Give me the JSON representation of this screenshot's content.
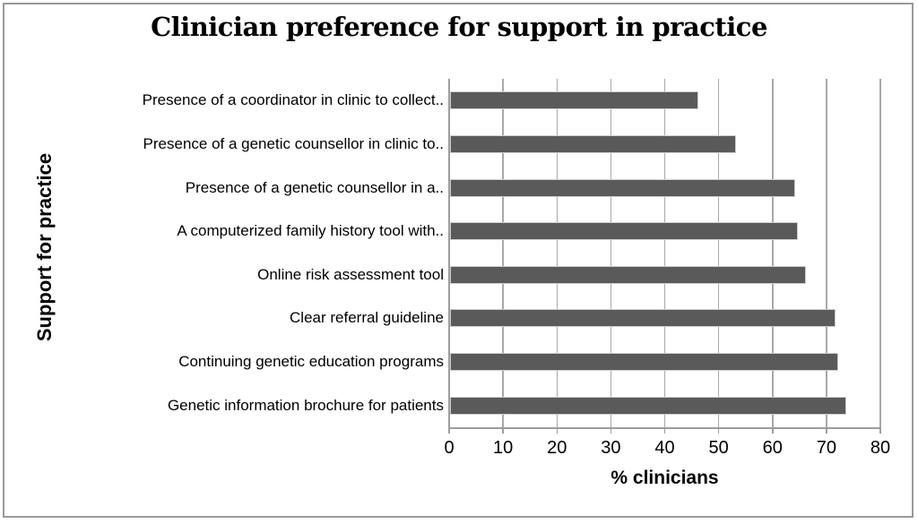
{
  "chart_data": {
    "type": "bar",
    "orientation": "horizontal",
    "title": "Clinician preference for support in practice",
    "xlabel": "% clinicians",
    "ylabel": "Support for practice",
    "categories": [
      "Presence of a coordinator in clinic to collect..",
      "Presence of a genetic counsellor in clinic to..",
      "Presence of a genetic counsellor in a..",
      "A computerized family history tool with..",
      "Online risk assessment tool",
      "Clear referral guideline",
      "Continuing genetic education programs",
      "Genetic information brochure for patients"
    ],
    "values": [
      46,
      53,
      64,
      64.5,
      66,
      71.5,
      72,
      73.5
    ],
    "xlim": [
      0,
      80
    ],
    "xticks": [
      0,
      10,
      20,
      30,
      40,
      50,
      60,
      70,
      80
    ],
    "grid": "vertical gridlines at every x tick",
    "legend": "none",
    "colors": {
      "bar": "#5a5a5a",
      "gridline": "#a8a8a8",
      "axis": "#9d9d9d",
      "frame_border": "#9a9a9a",
      "background": "#ffffff",
      "text": "#000000"
    }
  }
}
